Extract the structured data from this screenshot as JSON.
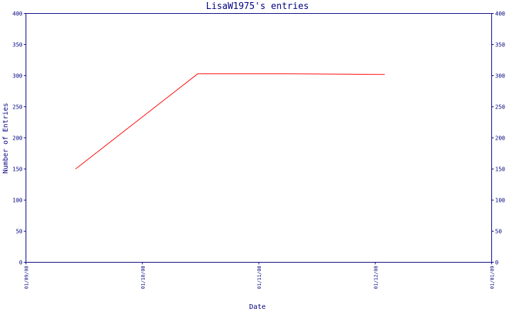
{
  "chart_data": {
    "type": "line",
    "title": "LisaW1975's entries",
    "xlabel": "Date",
    "ylabel": "Number of Entries",
    "x_tick_labels": [
      "01/09/08",
      "01/10/08",
      "01/11/08",
      "01/12/08",
      "01/01/09"
    ],
    "xlim": [
      "2008-09-01",
      "2009-01-01"
    ],
    "ylim": [
      0,
      400
    ],
    "y_ticks": [
      0,
      50,
      100,
      150,
      200,
      250,
      300,
      350,
      400
    ],
    "grid": false,
    "legend": "none",
    "series": [
      {
        "x": [
          "2008-09-14",
          "2008-10-16",
          "2008-11-09",
          "2008-12-04"
        ],
        "y": [
          150,
          303,
          303,
          302
        ]
      }
    ],
    "colors": {
      "axis": "#000080",
      "line": "#ff0000",
      "text": "#000080",
      "frame": "#000080"
    }
  }
}
